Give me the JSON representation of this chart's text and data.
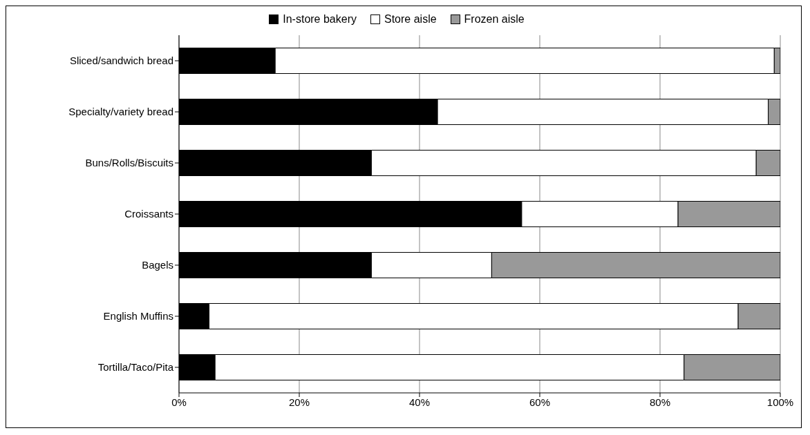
{
  "chart_data": {
    "type": "bar",
    "orientation": "horizontal",
    "stacked": true,
    "categories": [
      "Sliced/sandwich bread",
      "Specialty/variety bread",
      "Buns/Rolls/Biscuits",
      "Croissants",
      "Bagels",
      "English Muffins",
      "Tortilla/Taco/Pita"
    ],
    "series": [
      {
        "name": "In-store bakery",
        "color": "#000000",
        "values": [
          16,
          43,
          32,
          57,
          32,
          5,
          6
        ]
      },
      {
        "name": "Store aisle",
        "color": "#ffffff",
        "values": [
          83,
          55,
          64,
          26,
          20,
          88,
          78
        ]
      },
      {
        "name": "Frozen aisle",
        "color": "#999999",
        "values": [
          1,
          2,
          4,
          17,
          48,
          7,
          16
        ]
      }
    ],
    "xlim": [
      0,
      100
    ],
    "xticks": [
      {
        "value": 0,
        "label": "0%"
      },
      {
        "value": 20,
        "label": "20%"
      },
      {
        "value": 40,
        "label": "40%"
      },
      {
        "value": 60,
        "label": "60%"
      },
      {
        "value": 80,
        "label": "80%"
      },
      {
        "value": 100,
        "label": "100%"
      }
    ],
    "grid": "x",
    "legend": "top"
  }
}
